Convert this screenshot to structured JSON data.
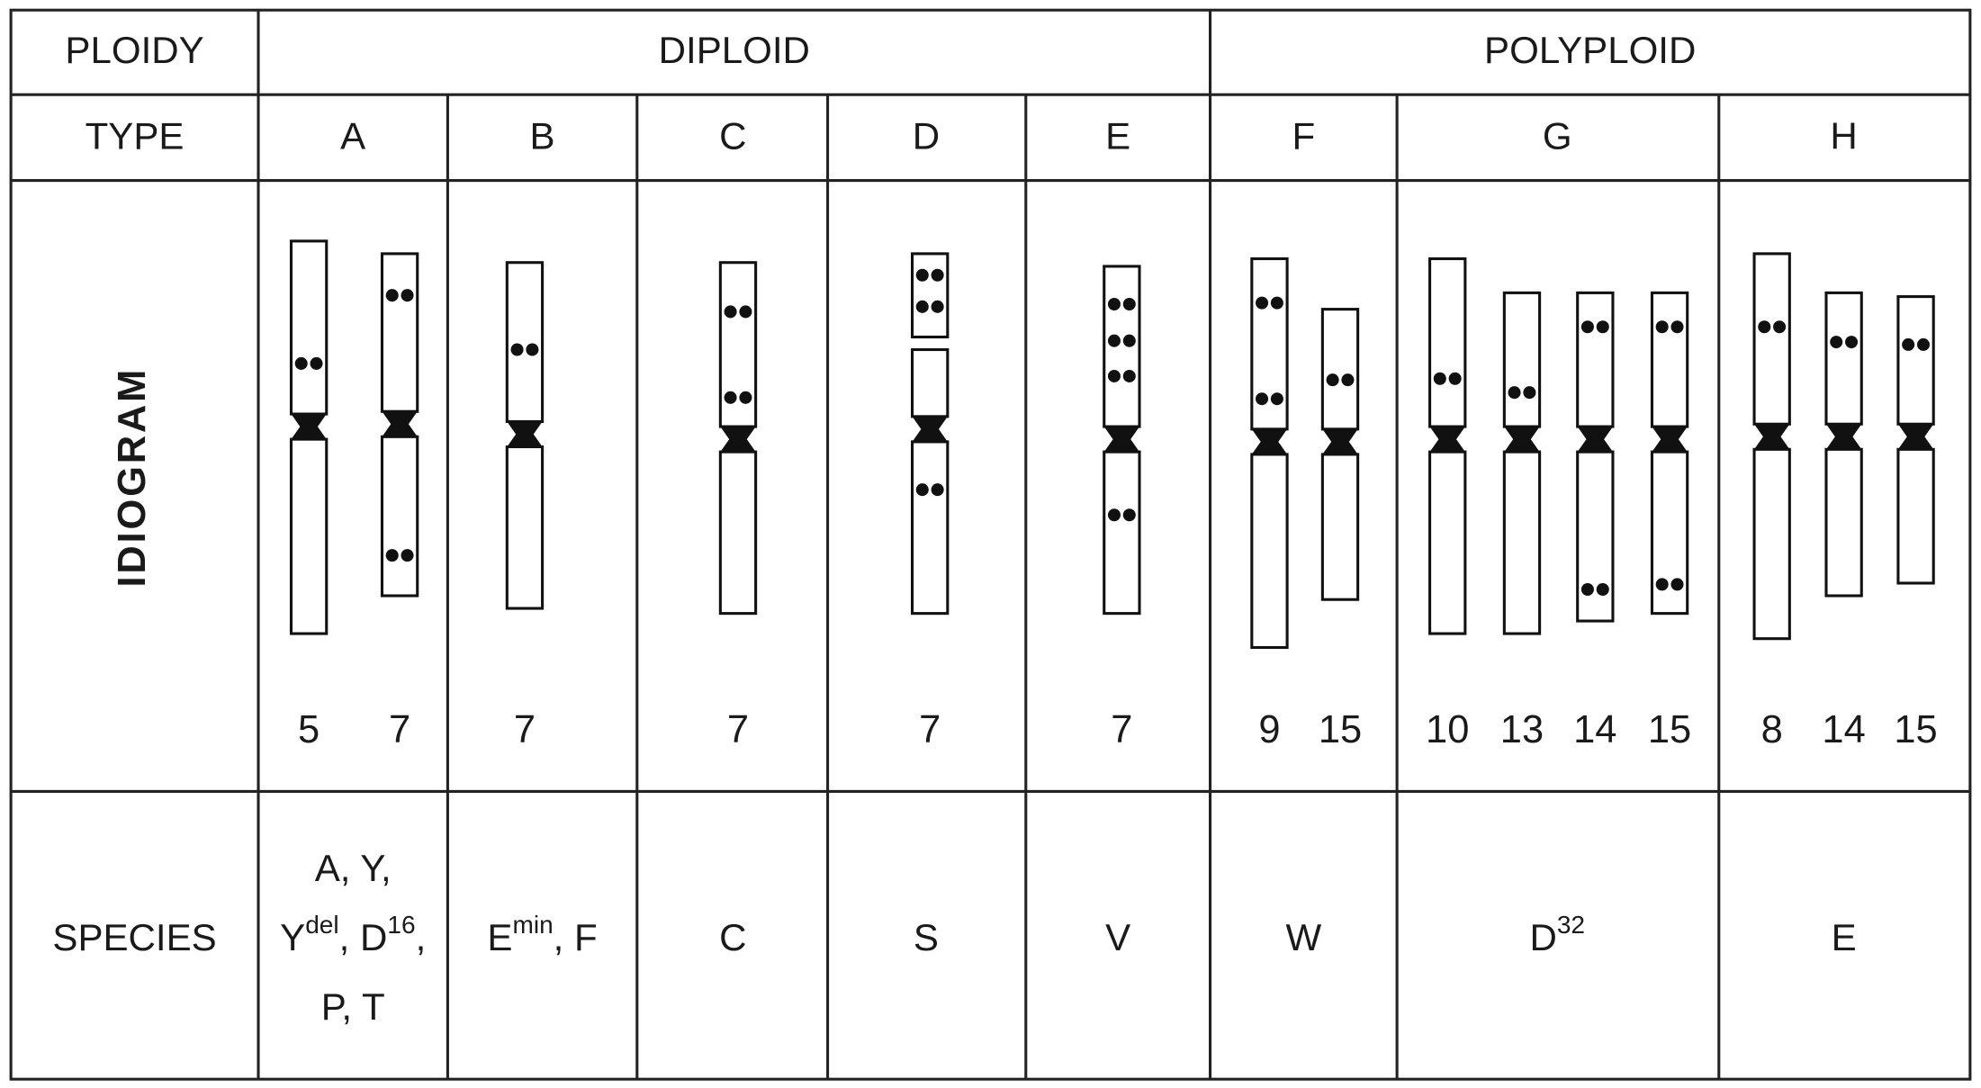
{
  "header": {
    "ploidy_label": "PLOIDY",
    "type_label": "TYPE",
    "idiogram_label": "IDIOGRAM",
    "species_label": "SPECIES"
  },
  "ploidy": [
    "DIPLOID",
    "POLYPLOID"
  ],
  "types": [
    "A",
    "B",
    "C",
    "D",
    "E",
    "F",
    "G",
    "H"
  ],
  "chromosomes": [
    [
      5,
      7
    ],
    [
      7
    ],
    [
      7
    ],
    [
      7
    ],
    [
      7
    ],
    [
      9,
      15
    ],
    [
      10,
      13,
      14,
      15
    ],
    [
      8,
      14,
      15
    ]
  ],
  "species": [
    [
      [
        "A, Y,"
      ],
      [
        "Y",
        {
          "sup": "del"
        },
        ", D",
        {
          "sup": "16"
        },
        ","
      ],
      [
        "P, T"
      ]
    ],
    [
      [
        "E",
        {
          "sup": "min"
        },
        ", F"
      ]
    ],
    [
      [
        "C"
      ]
    ],
    [
      [
        "S"
      ]
    ],
    [
      [
        "V"
      ]
    ],
    [
      [
        "W"
      ]
    ],
    [
      [
        "D",
        {
          "sup": "32"
        }
      ]
    ],
    [
      [
        "E"
      ]
    ]
  ]
}
